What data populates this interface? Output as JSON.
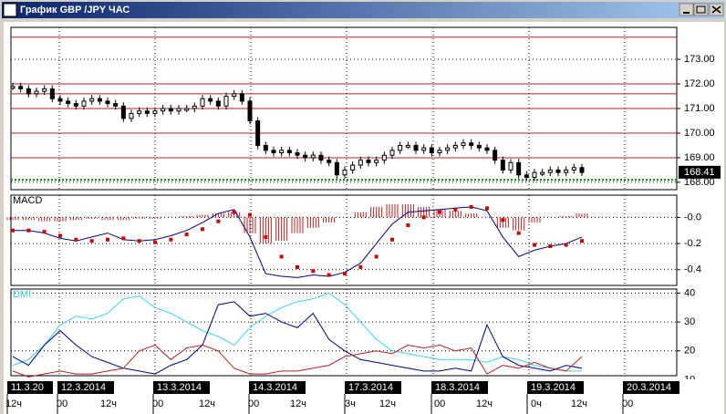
{
  "window": {
    "title": "График GBP /JPY ЧАС"
  },
  "chart_data": [
    {
      "type": "candlestick",
      "color": "#000000",
      "values": [
        171.9,
        171.8,
        171.6,
        171.7,
        171.8,
        171.4,
        171.3,
        171.2,
        171.1,
        171.3,
        171.4,
        171.3,
        171.2,
        171.1,
        170.6,
        170.8,
        170.9,
        170.8,
        170.9,
        171.0,
        170.9,
        171.0,
        171.0,
        171.1,
        171.4,
        171.3,
        171.1,
        171.5,
        171.6,
        171.3,
        170.5,
        169.5,
        169.3,
        169.2,
        169.3,
        169.2,
        169.1,
        169.0,
        169.1,
        168.9,
        168.8,
        168.3,
        168.5,
        168.7,
        168.9,
        168.8,
        168.9,
        169.1,
        169.3,
        169.5,
        169.5,
        169.3,
        169.4,
        169.2,
        169.3,
        169.4,
        169.5,
        169.6,
        169.5,
        169.4,
        169.3,
        168.9,
        168.5,
        168.8,
        168.3,
        168.2,
        168.4,
        168.4,
        168.5,
        168.4,
        168.5,
        168.6,
        168.4
      ],
      "levels": [
        {
          "value": 173.9,
          "color": "#b22222"
        },
        {
          "value": 172.0,
          "color": "#b22222"
        },
        {
          "value": 171.6,
          "color": "#b22222"
        },
        {
          "value": 171.0,
          "color": "#b22222"
        },
        {
          "value": 170.0,
          "color": "#b22222"
        },
        {
          "value": 169.0,
          "color": "#b22222"
        },
        {
          "value": 168.1,
          "color": "#008000"
        }
      ],
      "last_value": 168.41,
      "ylim": [
        167.7,
        174.3
      ],
      "yticks": [
        {
          "value": 168,
          "label": "168.00"
        },
        {
          "value": 169,
          "label": "169.00"
        },
        {
          "value": 170,
          "label": "170.00"
        },
        {
          "value": 171,
          "label": "171.00"
        },
        {
          "value": 172,
          "label": "172.00"
        },
        {
          "value": 173,
          "label": "173.00"
        }
      ],
      "grid": true
    },
    {
      "type": "macd",
      "title": "MACD",
      "histogram": {
        "color": "#b22222",
        "values": [
          -0.02,
          -0.02,
          -0.03,
          -0.03,
          -0.02,
          -0.01,
          -0.02,
          -0.02,
          -0.01,
          -0.01,
          0.0,
          0.01,
          0.02,
          0.03,
          0.04,
          -0.12,
          -0.2,
          -0.18,
          -0.12,
          -0.08,
          -0.04,
          0.0,
          0.04,
          0.08,
          0.1,
          0.1,
          0.08,
          0.06,
          0.05,
          0.03,
          0.0,
          -0.08,
          -0.1,
          -0.04,
          0.0,
          0.01,
          0.03
        ]
      },
      "series": [
        {
          "color": "#000080",
          "style": "line",
          "values": [
            -0.1,
            -0.1,
            -0.12,
            -0.16,
            -0.18,
            -0.15,
            -0.12,
            -0.17,
            -0.18,
            -0.17,
            -0.14,
            -0.1,
            -0.04,
            0.03,
            0.06,
            -0.15,
            -0.43,
            -0.45,
            -0.46,
            -0.44,
            -0.45,
            -0.42,
            -0.35,
            -0.2,
            -0.05,
            0.04,
            0.05,
            0.06,
            0.07,
            0.08,
            0.05,
            -0.15,
            -0.3,
            -0.25,
            -0.22,
            -0.2,
            -0.15
          ]
        },
        {
          "color": "#cc0000",
          "style": "dots",
          "values": [
            -0.1,
            -0.1,
            -0.11,
            -0.14,
            -0.17,
            -0.18,
            -0.17,
            -0.16,
            -0.18,
            -0.19,
            -0.17,
            -0.13,
            -0.09,
            -0.03,
            0.04,
            0.02,
            -0.15,
            -0.3,
            -0.38,
            -0.41,
            -0.44,
            -0.43,
            -0.38,
            -0.3,
            -0.17,
            -0.06,
            0.0,
            0.04,
            0.06,
            0.08,
            0.07,
            -0.02,
            -0.12,
            -0.21,
            -0.22,
            -0.21,
            -0.18
          ]
        }
      ],
      "ylim": [
        -0.52,
        0.17
      ],
      "yticks": [
        {
          "value": 0,
          "label": "-0.0"
        },
        {
          "value": -0.2,
          "label": "-0.2"
        },
        {
          "value": -0.4,
          "label": "-0.4"
        }
      ],
      "grid": true
    },
    {
      "type": "line",
      "title": "DMI",
      "series": [
        {
          "color": "#40d0e0",
          "values": [
            15,
            17,
            22,
            29,
            32,
            31,
            33,
            38,
            39,
            35,
            33,
            30,
            27,
            25,
            22,
            28,
            32,
            35,
            37,
            38,
            40,
            36,
            30,
            24,
            20,
            19,
            18,
            17,
            17,
            17,
            16,
            18,
            17,
            15,
            14,
            13,
            13
          ]
        },
        {
          "color": "#000080",
          "values": [
            18,
            15,
            22,
            27,
            22,
            18,
            16,
            14,
            13,
            12,
            15,
            17,
            22,
            36,
            37,
            32,
            33,
            30,
            28,
            33,
            24,
            20,
            17,
            16,
            15,
            14,
            13,
            13,
            14,
            13,
            29,
            18,
            15,
            14,
            13,
            15,
            14
          ]
        },
        {
          "color": "#b22222",
          "values": [
            13,
            11,
            12,
            13,
            12,
            12,
            13,
            14,
            20,
            22,
            17,
            21,
            22,
            20,
            14,
            12,
            12,
            13,
            13,
            14,
            15,
            18,
            19,
            20,
            19,
            22,
            21,
            22,
            20,
            21,
            12,
            15,
            14,
            16,
            14,
            13,
            18
          ]
        }
      ],
      "ylim": [
        11.4,
        41.4
      ],
      "yticks": [
        10,
        20,
        30,
        40
      ],
      "grid": true
    }
  ],
  "time_axis": {
    "dates": [
      "11.3.20",
      "12.3.2014",
      "13.3.2014",
      "14.3.2014",
      "17.3.2014",
      "18.3.2014",
      "19.3.2014",
      "20.3.2014"
    ],
    "hours": [
      "12ч",
      "00",
      "12ч",
      "00",
      "12ч",
      "00",
      "12ч",
      "3ч",
      "12ч",
      "00",
      "12ч",
      "0ч",
      "12ч",
      "00"
    ]
  }
}
